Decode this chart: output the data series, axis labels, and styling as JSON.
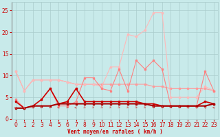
{
  "x": [
    0,
    1,
    2,
    3,
    4,
    5,
    6,
    7,
    8,
    9,
    10,
    11,
    12,
    13,
    14,
    15,
    16,
    17,
    18,
    19,
    20,
    21,
    22,
    23
  ],
  "lines": [
    {
      "color": "#FF9999",
      "alpha": 1.0,
      "lw": 0.8,
      "marker": "s",
      "ms": 2.0,
      "values": [
        11.0,
        6.5,
        9.0,
        9.0,
        9.0,
        9.0,
        8.5,
        8.0,
        8.0,
        8.0,
        8.0,
        8.0,
        8.0,
        8.0,
        8.0,
        8.0,
        7.5,
        7.5,
        7.0,
        7.0,
        7.0,
        7.0,
        7.0,
        6.5
      ]
    },
    {
      "color": "#FFB8B8",
      "alpha": 1.0,
      "lw": 0.8,
      "marker": "s",
      "ms": 2.0,
      "values": [
        11.0,
        6.5,
        9.0,
        9.0,
        9.0,
        9.0,
        8.5,
        8.0,
        8.0,
        8.0,
        7.5,
        12.0,
        12.0,
        19.5,
        19.0,
        20.5,
        24.5,
        24.5,
        5.0,
        5.0,
        5.0,
        5.0,
        7.5,
        6.5
      ]
    },
    {
      "color": "#FF8080",
      "alpha": 1.0,
      "lw": 0.8,
      "marker": "s",
      "ms": 2.0,
      "values": [
        4.5,
        2.5,
        3.0,
        4.5,
        7.0,
        3.0,
        3.0,
        4.0,
        9.5,
        9.5,
        7.0,
        6.5,
        11.5,
        6.5,
        13.5,
        11.5,
        13.5,
        11.5,
        3.0,
        3.0,
        3.0,
        3.0,
        11.0,
        6.5
      ]
    },
    {
      "color": "#CC0000",
      "alpha": 1.0,
      "lw": 1.2,
      "marker": "s",
      "ms": 2.0,
      "values": [
        4.0,
        2.5,
        3.0,
        4.5,
        7.0,
        3.5,
        4.0,
        7.0,
        4.0,
        4.0,
        4.0,
        4.0,
        4.0,
        4.0,
        4.0,
        3.5,
        3.5,
        3.0,
        3.0,
        3.0,
        3.0,
        3.0,
        4.0,
        3.5
      ]
    },
    {
      "color": "#AA0000",
      "alpha": 1.0,
      "lw": 1.5,
      "marker": "s",
      "ms": 2.0,
      "values": [
        2.5,
        2.5,
        3.0,
        3.0,
        3.0,
        3.5,
        3.5,
        3.5,
        3.5,
        3.5,
        3.5,
        3.5,
        3.5,
        3.5,
        3.5,
        3.5,
        3.0,
        3.0,
        3.0,
        3.0,
        3.0,
        3.0,
        3.0,
        3.5
      ]
    }
  ],
  "xlabel": "Vent moyen/en rafales ( km/h )",
  "xlabel_color": "#CC0000",
  "xlabel_fontsize": 5.5,
  "xtick_labels": [
    "0",
    "1",
    "2",
    "3",
    "4",
    "5",
    "6",
    "7",
    "8",
    "9",
    "10",
    "11",
    "12",
    "13",
    "14",
    "15",
    "16",
    "17",
    "18",
    "19",
    "20",
    "21",
    "22",
    "23"
  ],
  "yticks": [
    0,
    5,
    10,
    15,
    20,
    25
  ],
  "ylim": [
    0,
    27
  ],
  "xlim": [
    -0.5,
    23.5
  ],
  "bg_color": "#C8EAEA",
  "grid_color": "#AACCCC",
  "tick_color": "#CC0000",
  "tick_fontsize": 5.5,
  "arrow_color": "#CC6666",
  "arrow_angles": [
    225,
    225,
    270,
    45,
    45,
    270,
    45,
    270,
    45,
    45,
    45,
    45,
    45,
    45,
    45,
    45,
    315,
    315,
    315,
    315,
    225,
    225,
    225,
    225
  ]
}
